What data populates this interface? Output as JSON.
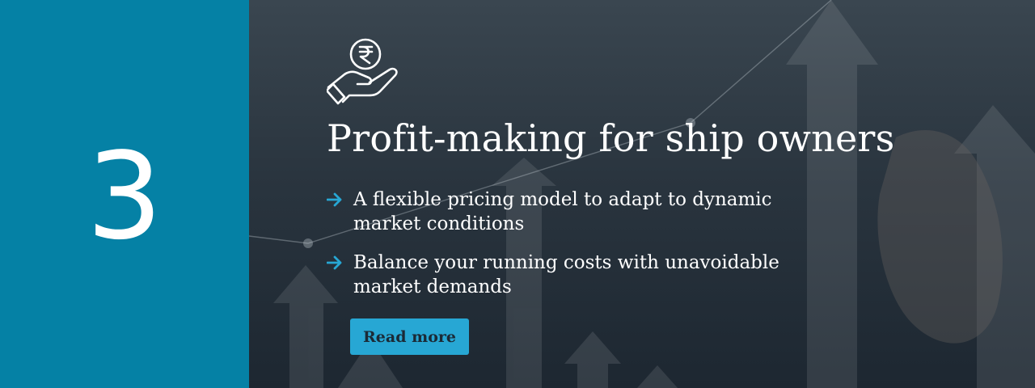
{
  "step": {
    "number": "3"
  },
  "hero": {
    "icon": "rupee-hand-icon",
    "title": "Profit-making for ship owners"
  },
  "bullets": [
    {
      "icon": "arrow-right-icon",
      "text": "A flexible pricing model to adapt to dynamic market conditions"
    },
    {
      "icon": "arrow-right-icon",
      "text": "Balance your running costs with unavoidable market demands"
    }
  ],
  "cta": {
    "label": "Read more"
  },
  "colors": {
    "left_panel": "#0581a5",
    "accent": "#27a7d4",
    "text": "#ffffff",
    "button_text": "#1b2a36"
  }
}
